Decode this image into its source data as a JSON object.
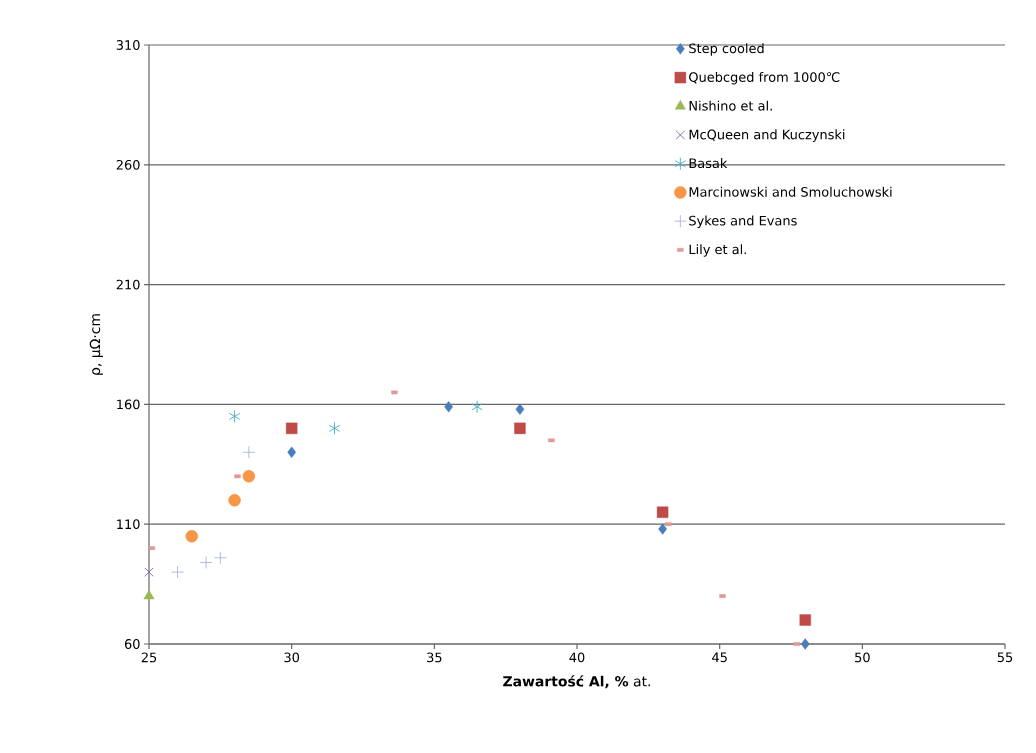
{
  "chart_data": {
    "type": "scatter",
    "xlabel": "**Zawartość Al,  %** at.",
    "ylabel": "ρ,  μΩ·cm",
    "xlim": [
      25,
      55
    ],
    "xticks": [
      25,
      30,
      35,
      40,
      45,
      50,
      55
    ],
    "ylim": [
      60,
      310
    ],
    "yticks": [
      60,
      110,
      160,
      210,
      260,
      310
    ],
    "grid": "y",
    "legend": "top right",
    "series": [
      {
        "name": "Step cooled",
        "color": "#4a7ebb",
        "marker": "diamond",
        "x": [
          30,
          35.5,
          38,
          43,
          48
        ],
        "values": [
          140,
          159,
          158,
          108,
          60
        ]
      },
      {
        "name": "Quebcged from 1000℃",
        "color": "#be4b48",
        "marker": "square",
        "x": [
          30,
          38,
          43,
          48
        ],
        "values": [
          150,
          150,
          115,
          70
        ]
      },
      {
        "name": "Nishino et al.",
        "color": "#98b954",
        "marker": "triangle",
        "x": [
          25
        ],
        "values": [
          80
        ]
      },
      {
        "name": "McQueen and Kuczynski",
        "color": "#7d60a0",
        "marker": "cross",
        "x": [
          25
        ],
        "values": [
          90
        ]
      },
      {
        "name": "Basak",
        "color": "#46aac5",
        "marker": "cross",
        "x": [
          28,
          31.5,
          36.5
        ],
        "values": [
          155,
          150,
          159
        ]
      },
      {
        "name": "Marcinowski and Smoluchowski",
        "color": "#f79646",
        "marker": "circle",
        "x": [
          26.5,
          28,
          28.5
        ],
        "values": [
          105,
          120,
          130
        ]
      },
      {
        "name": "Sykes and Evans",
        "color": "#a5b8dc",
        "marker": "plus",
        "x": [
          26,
          27,
          27.5,
          28.5
        ],
        "values": [
          90,
          94,
          96,
          140
        ]
      },
      {
        "name": "Lily et al.",
        "color": "#dd9a98",
        "marker": "square",
        "x": [
          25.1,
          28.1,
          33.6,
          39.1,
          43.2,
          45.1,
          47.7
        ],
        "values": [
          100,
          130,
          165,
          145,
          110,
          80,
          60
        ]
      }
    ]
  }
}
